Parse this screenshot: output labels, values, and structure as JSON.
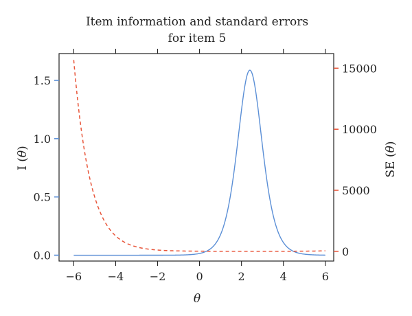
{
  "chart_data": {
    "type": "line",
    "title_line1": "Item information and standard errors",
    "title_line2": "for item 5",
    "xlabel": "θ",
    "ylabel_left_prefix": "I (",
    "ylabel_left_var": "θ",
    "ylabel_left_suffix": ")",
    "ylabel_right_prefix": "SE (",
    "ylabel_right_var": "θ",
    "ylabel_right_suffix": ")",
    "xlim": [
      -6.7,
      6.4
    ],
    "ylim_left": [
      -0.05,
      1.73
    ],
    "ylim_right": [
      -800,
      16200
    ],
    "x_ticks": [
      -6,
      -4,
      -2,
      0,
      2,
      4,
      6
    ],
    "x_tick_labels": [
      "−6",
      "−4",
      "−2",
      "0",
      "2",
      "4",
      "6"
    ],
    "y_left_ticks": [
      0.0,
      0.5,
      1.0,
      1.5
    ],
    "y_left_tick_labels": [
      "0.0",
      "0.5",
      "1.0",
      "1.5"
    ],
    "y_right_ticks": [
      0,
      5000,
      10000,
      15000
    ],
    "y_right_tick_labels": [
      "0",
      "5000",
      "10000",
      "15000"
    ],
    "series": [
      {
        "axis": "left",
        "style": "solid",
        "color": "#5b8fd6",
        "model": "2PL",
        "a": 2.52,
        "b": 2.4,
        "x_range": [
          -6,
          6
        ]
      },
      {
        "axis": "right",
        "style": "dashed",
        "color": "#e8553a",
        "x_range": [
          -6,
          6
        ],
        "values_at": [
          {
            "x": -6,
            "y": 15300
          },
          {
            "x": -5,
            "y": 5700
          },
          {
            "x": -4,
            "y": 2150
          },
          {
            "x": -3,
            "y": 800
          },
          {
            "x": -2,
            "y": 300
          },
          {
            "x": -1,
            "y": 110
          },
          {
            "x": 0,
            "y": 40
          },
          {
            "x": 6,
            "y": 0
          }
        ]
      }
    ]
  }
}
